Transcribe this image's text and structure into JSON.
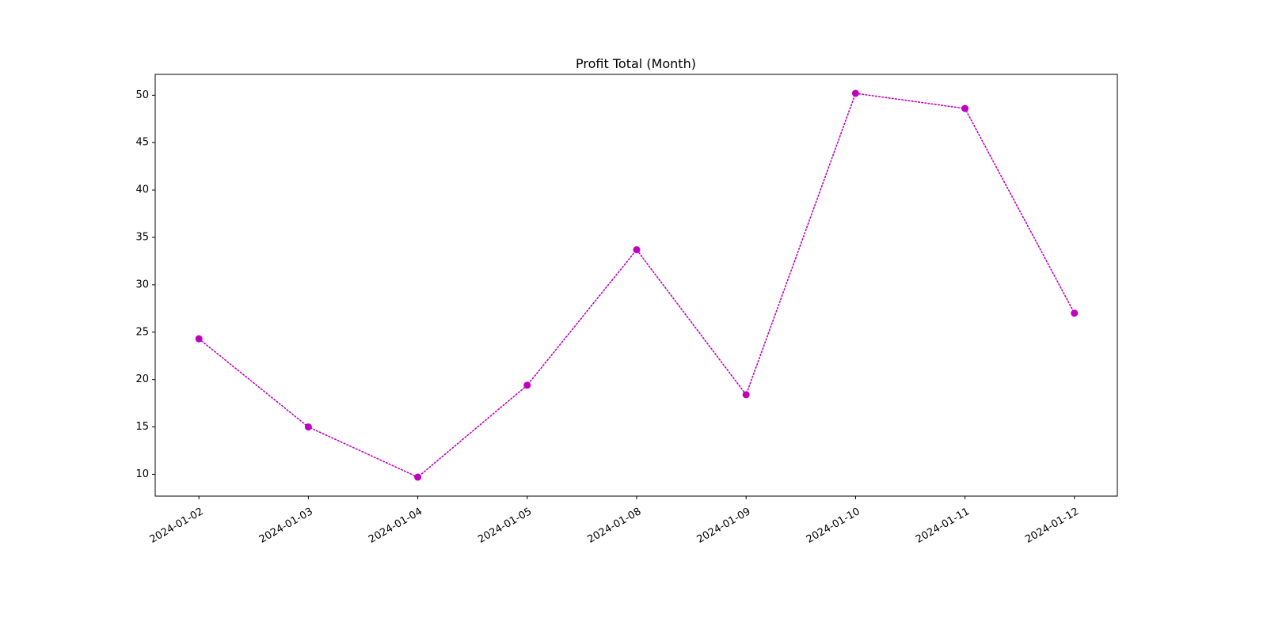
{
  "chart_data": {
    "type": "line",
    "title": "Profit Total (Month)",
    "xlabel": "",
    "ylabel": "",
    "categories": [
      "2024-01-02",
      "2024-01-03",
      "2024-01-04",
      "2024-01-05",
      "2024-01-08",
      "2024-01-09",
      "2024-01-10",
      "2024-01-11",
      "2024-01-12"
    ],
    "series": [
      {
        "values": [
          24.3,
          15.0,
          9.7,
          19.4,
          33.7,
          18.4,
          50.2,
          48.6,
          27.0
        ],
        "color": "#bf00bf",
        "line_style": "dotted",
        "marker": "circle"
      }
    ],
    "ylim": [
      7.7,
      52.2
    ],
    "y_ticks": [
      10,
      15,
      20,
      25,
      30,
      35,
      40,
      45,
      50
    ],
    "grid": false,
    "legend": "none"
  }
}
